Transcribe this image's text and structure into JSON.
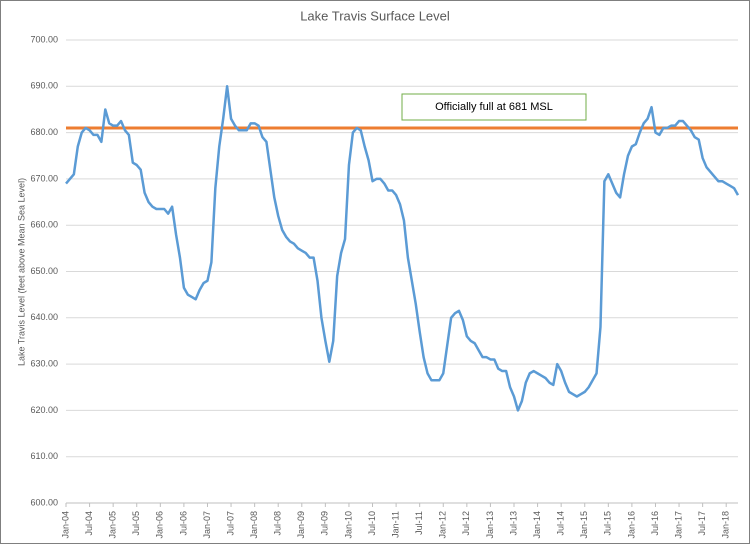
{
  "chart_data": {
    "type": "line",
    "title": "Lake Travis Surface Level",
    "y_label": "Lake Travis Level (feet above Mean Sea Level)",
    "categories": [
      "Jan-04",
      null,
      null,
      null,
      null,
      null,
      "Jul-04",
      null,
      null,
      null,
      null,
      null,
      "Jan-05",
      null,
      null,
      null,
      null,
      null,
      "Jul-05",
      null,
      null,
      null,
      null,
      null,
      "Jan-06",
      null,
      null,
      null,
      null,
      null,
      "Jul-06",
      null,
      null,
      null,
      null,
      null,
      "Jan-07",
      null,
      null,
      null,
      null,
      null,
      "Jul-07",
      null,
      null,
      null,
      null,
      null,
      "Jan-08",
      null,
      null,
      null,
      null,
      null,
      "Jul-08",
      null,
      null,
      null,
      null,
      null,
      "Jan-09",
      null,
      null,
      null,
      null,
      null,
      "Jul-09",
      null,
      null,
      null,
      null,
      null,
      "Jan-10",
      null,
      null,
      null,
      null,
      null,
      "Jul-10",
      null,
      null,
      null,
      null,
      null,
      "Jan-11",
      null,
      null,
      null,
      null,
      null,
      "Jul-11",
      null,
      null,
      null,
      null,
      null,
      "Jan-12",
      null,
      null,
      null,
      null,
      null,
      "Jul-12",
      null,
      null,
      null,
      null,
      null,
      "Jan-13",
      null,
      null,
      null,
      null,
      null,
      "Jul-13",
      null,
      null,
      null,
      null,
      null,
      "Jan-14",
      null,
      null,
      null,
      null,
      null,
      "Jul-14",
      null,
      null,
      null,
      null,
      null,
      "Jan-15",
      null,
      null,
      null,
      null,
      null,
      "Jul-15",
      null,
      null,
      null,
      null,
      null,
      "Jan-16",
      null,
      null,
      null,
      null,
      null,
      "Jul-16",
      null,
      null,
      null,
      null,
      null,
      "Jan-17",
      null,
      null,
      null,
      null,
      null,
      "Jul-17",
      null,
      null,
      null,
      null,
      null,
      "Jan-18",
      null,
      null,
      null
    ],
    "series": [
      {
        "name": "Lake Travis Level",
        "color": "#5b9bd5",
        "values": [
          669,
          670,
          671,
          677,
          680,
          681,
          680.5,
          679.5,
          679.5,
          678,
          685,
          682,
          681.5,
          681.5,
          682.5,
          680.5,
          679.5,
          673.5,
          673,
          672,
          667,
          665,
          664,
          663.5,
          663.5,
          663.5,
          662.5,
          664,
          658,
          653,
          646.5,
          645,
          644.5,
          644,
          646,
          647.5,
          648,
          652,
          668,
          677,
          683,
          690,
          683,
          681.5,
          680.5,
          680.5,
          680.5,
          682,
          682,
          681.5,
          679,
          678,
          672,
          666,
          662,
          659,
          657.5,
          656.5,
          656,
          655,
          654.5,
          654,
          653,
          653,
          648,
          640,
          635,
          630.5,
          635,
          649,
          654,
          657,
          673,
          680,
          681,
          680.5,
          677,
          674,
          669.5,
          670,
          670,
          669,
          667.5,
          667.5,
          666.5,
          664.5,
          661,
          653,
          648,
          643,
          637,
          631.5,
          628,
          626.5,
          626.5,
          626.5,
          628,
          634,
          640,
          641,
          641.5,
          639.5,
          636,
          635,
          634.5,
          633,
          631.5,
          631.5,
          631,
          631,
          629,
          628.5,
          628.5,
          625,
          623,
          620,
          622,
          626,
          628,
          628.5,
          628,
          627.5,
          627,
          626,
          625.5,
          630,
          628.5,
          626,
          624,
          623.5,
          623,
          623.5,
          624,
          625,
          626.5,
          628,
          638,
          669.5,
          671,
          669,
          667,
          666,
          671,
          675,
          677,
          677.5,
          680,
          682,
          683,
          685.5,
          680,
          679.5,
          681,
          681,
          681.5,
          681.5,
          682.5,
          682.5,
          681.5,
          680.5,
          679,
          678.5,
          674.5,
          672.5,
          671.5,
          670.5,
          669.5,
          669.5,
          669,
          668.5,
          668,
          666.5
        ]
      }
    ],
    "reference_line": {
      "value": 681,
      "color": "#ed7d31",
      "label": "Officially full at 681 MSL"
    },
    "ylim": [
      600,
      700
    ],
    "yticks": [
      {
        "value": 600,
        "label": "600.00"
      },
      {
        "value": 610,
        "label": "610.00"
      },
      {
        "value": 620,
        "label": "620.00"
      },
      {
        "value": 630,
        "label": "630.00"
      },
      {
        "value": 640,
        "label": "640.00"
      },
      {
        "value": 650,
        "label": "650.00"
      },
      {
        "value": 660,
        "label": "660.00"
      },
      {
        "value": 670,
        "label": "670.00"
      },
      {
        "value": 680,
        "label": "680.00"
      },
      {
        "value": 690,
        "label": "690.00"
      },
      {
        "value": 700,
        "label": "700.00"
      }
    ],
    "grid": true
  }
}
